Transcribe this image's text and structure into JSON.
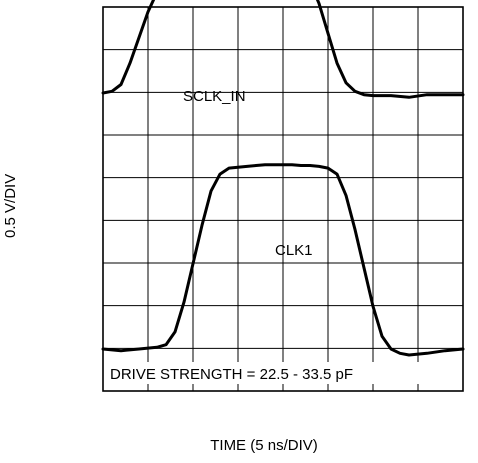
{
  "chart_data": {
    "type": "line",
    "xlabel": "TIME (5 ns/DIV)",
    "ylabel": "0.5 V/DIV",
    "annotation": "DRIVE STRENGTH = 22.5 - 33.5 pF",
    "grid": true,
    "x_divisions": 8,
    "y_divisions": 9,
    "xlim": [
      0,
      40
    ],
    "ylim": [
      0,
      4.5
    ],
    "series": [
      {
        "name": "SCLK_IN",
        "x": [
          0,
          1,
          2,
          3,
          4,
          5,
          6,
          7,
          8,
          9,
          10,
          11,
          12,
          13,
          14,
          15,
          16,
          17,
          18,
          19,
          20,
          21,
          22,
          23,
          24,
          25,
          26,
          27,
          28,
          29,
          30,
          32,
          34,
          36,
          38,
          40
        ],
        "y": [
          3.0,
          3.02,
          3.1,
          3.35,
          3.65,
          3.95,
          4.18,
          4.3,
          4.33,
          4.35,
          4.37,
          4.38,
          4.39,
          4.4,
          4.41,
          4.41,
          4.42,
          4.43,
          4.43,
          4.44,
          4.44,
          4.43,
          4.4,
          4.3,
          4.05,
          3.7,
          3.35,
          3.12,
          3.02,
          2.98,
          2.97,
          2.97,
          2.95,
          2.98,
          2.98,
          2.98
        ]
      },
      {
        "name": "CLK1",
        "x": [
          0,
          2,
          4,
          6,
          7,
          8,
          9,
          10,
          11,
          12,
          13,
          14,
          15,
          16,
          17,
          18,
          19,
          20,
          21,
          22,
          23,
          24,
          25,
          26,
          27,
          28,
          29,
          30,
          31,
          32,
          33,
          34,
          36,
          38,
          40
        ],
        "y": [
          0.0,
          -0.02,
          0.0,
          0.02,
          0.05,
          0.2,
          0.55,
          1.0,
          1.45,
          1.85,
          2.05,
          2.12,
          2.13,
          2.14,
          2.15,
          2.16,
          2.16,
          2.16,
          2.16,
          2.15,
          2.15,
          2.14,
          2.12,
          2.05,
          1.8,
          1.4,
          0.95,
          0.5,
          0.15,
          0.0,
          -0.05,
          -0.07,
          -0.05,
          -0.02,
          0.0
        ]
      }
    ]
  }
}
